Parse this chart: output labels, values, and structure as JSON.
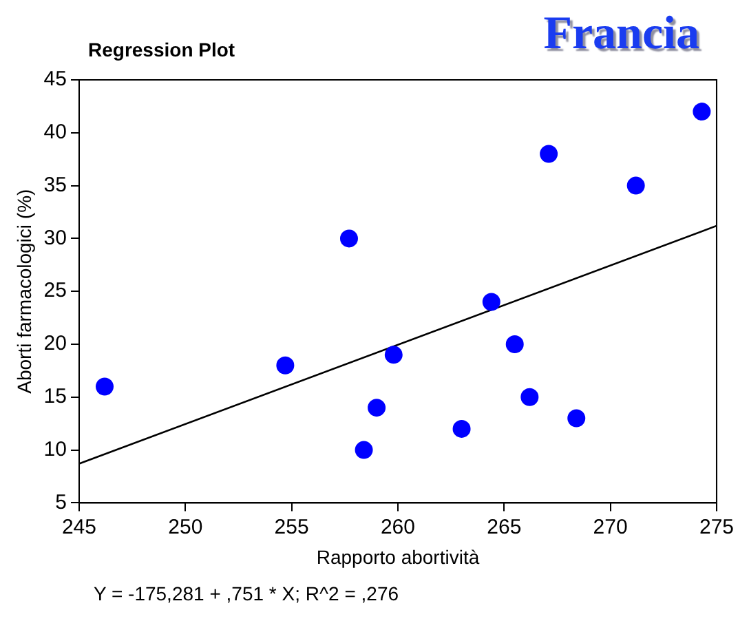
{
  "chart_data": {
    "type": "scatter",
    "title": "Regression Plot",
    "subtitle": "Francia",
    "xlabel": "Rapporto abortività",
    "ylabel": "Aborti farmacologici (%)",
    "annotations": [
      "Y = -175,281 + ,751 * X; R^2 = ,276"
    ],
    "series": [
      {
        "color": "#0000ff",
        "x": [
          246.2,
          254.7,
          257.7,
          258.4,
          259.0,
          259.8,
          263.0,
          264.4,
          265.5,
          266.2,
          267.1,
          268.4,
          271.2,
          274.3
        ],
        "values": [
          16,
          18,
          30,
          10,
          14,
          19,
          12,
          24,
          20,
          15,
          38,
          13,
          35,
          42
        ]
      },
      {
        "type": "line",
        "marker": "none",
        "color": "#000000",
        "x": [
          245,
          275
        ],
        "values": [
          8.7,
          31.2
        ]
      }
    ],
    "xlim": [
      245,
      275
    ],
    "xticks": [
      245,
      250,
      255,
      260,
      265,
      270,
      275
    ],
    "ylim": [
      5,
      45
    ],
    "yticks": [
      5,
      10,
      15,
      20,
      25,
      30,
      35,
      40,
      45
    ],
    "grid": false,
    "legend": false,
    "marker": "circle",
    "line_style": "solid"
  }
}
